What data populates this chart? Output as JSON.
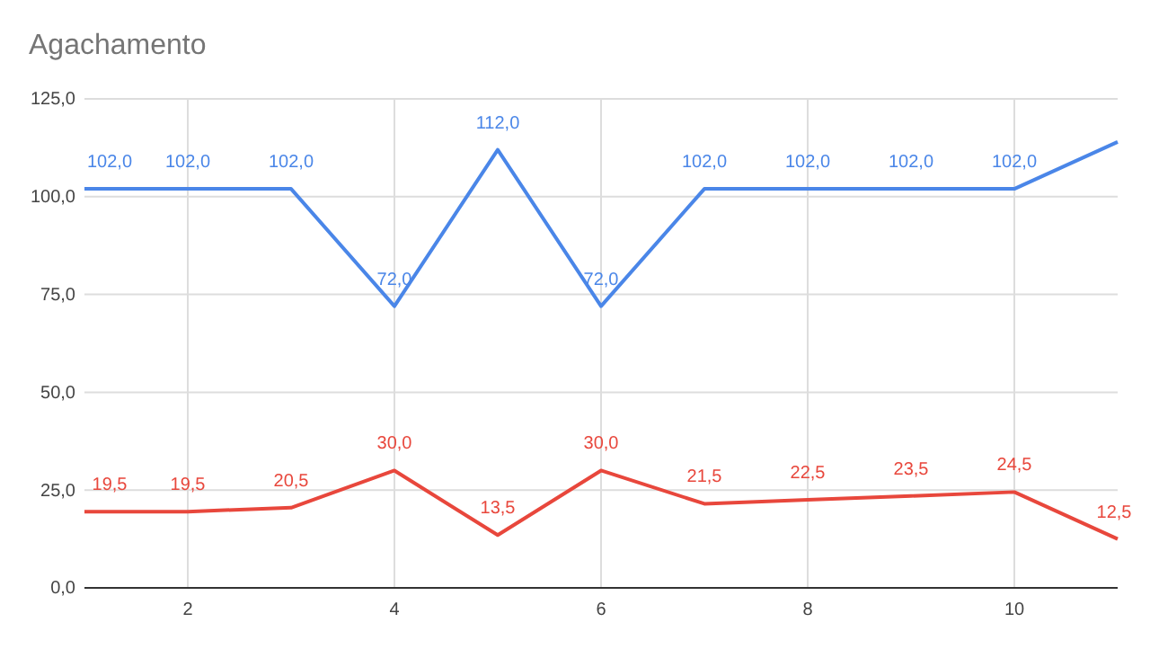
{
  "chart_data": {
    "type": "line",
    "title": "Agachamento",
    "x": [
      1,
      2,
      3,
      4,
      5,
      6,
      7,
      8,
      9,
      10,
      11
    ],
    "series": [
      {
        "color": "#4a86e8",
        "values": [
          102,
          102,
          102,
          72,
          112,
          72,
          102,
          102,
          102,
          102,
          114
        ],
        "value_labels": [
          "102,0",
          "102,0",
          "102,0",
          "72,0",
          "112,0",
          "72,0",
          "102,0",
          "102,0",
          "102,0",
          "102,0",
          null
        ]
      },
      {
        "color": "#e8473c",
        "values": [
          19.5,
          19.5,
          20.5,
          30,
          13.5,
          30,
          21.5,
          22.5,
          23.5,
          24.5,
          12.5
        ],
        "value_labels": [
          "19,5",
          "19,5",
          "20,5",
          "30,0",
          "13,5",
          "30,0",
          "21,5",
          "22,5",
          "23,5",
          "24,5",
          "12,5"
        ]
      }
    ],
    "xlim": [
      1,
      11
    ],
    "xticks": [
      2,
      4,
      6,
      8,
      10
    ],
    "ylim": [
      0,
      125
    ],
    "yticks": [
      {
        "value": 0,
        "label": "0,0"
      },
      {
        "value": 25,
        "label": "25,0"
      },
      {
        "value": 50,
        "label": "50,0"
      },
      {
        "value": 75,
        "label": "75,0"
      },
      {
        "value": 100,
        "label": "100,0"
      },
      {
        "value": 125,
        "label": "125,0"
      }
    ],
    "grid": true,
    "marker": "none",
    "line_style": "solid"
  }
}
